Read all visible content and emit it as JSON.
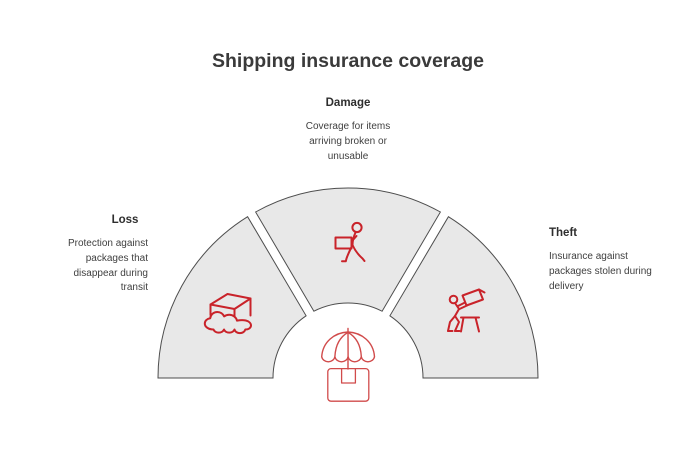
{
  "title": "Shipping insurance coverage",
  "diagram_type": "semicircular-fan-infographic",
  "colors": {
    "background": "#ffffff",
    "segment_fill": "#e8e8e8",
    "segment_stroke": "#4d4d4d",
    "icon_red": "#c9232a",
    "center_icon_red": "#d14b4b",
    "title_color": "#3a3a3a",
    "label_color": "#2e2e2e",
    "description_color": "#3f3f3f"
  },
  "segments": [
    {
      "label": "Loss",
      "description_lines": [
        "Protection against",
        "packages that",
        "disappear during",
        "transit"
      ],
      "icon": "package-cloud-icon",
      "position": "left"
    },
    {
      "label": "Damage",
      "description_lines": [
        "Coverage for items",
        "arriving broken or",
        "unusable"
      ],
      "icon": "person-carrying-box-icon",
      "position": "top-center"
    },
    {
      "label": "Theft",
      "description_lines": [
        "Insurance against",
        "packages stolen during",
        "delivery"
      ],
      "icon": "thief-with-package-icon",
      "position": "right"
    }
  ],
  "center_icon": "umbrella-over-package-icon"
}
